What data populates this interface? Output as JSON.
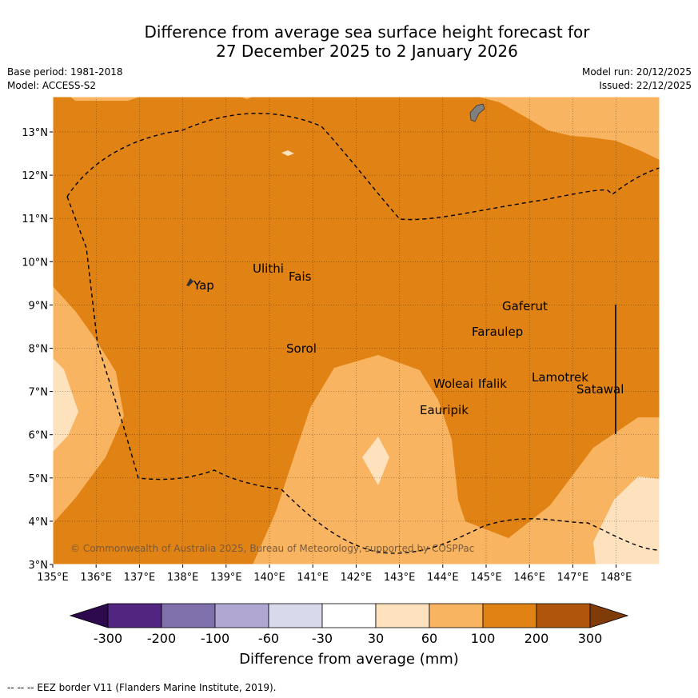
{
  "title_line1": "Difference from average sea surface height forecast for",
  "title_line2": "27 December 2025 to 2 January 2026",
  "meta": {
    "base_period": "Base period: 1981-2018",
    "model": "Model: ACCESS-S2",
    "model_run": "Model run: 20/12/2025",
    "issued": "Issued: 22/12/2025"
  },
  "copyright": "© Commonwealth of Australia 2025, Bureau of Meteorology, supported by COSPPac",
  "lat_labels": [
    "13°N",
    "12°N",
    "11°N",
    "10°N",
    "9°N",
    "8°N",
    "7°N",
    "6°N",
    "5°N",
    "4°N",
    "3°N"
  ],
  "lon_labels": [
    "135°E",
    "136°E",
    "137°E",
    "138°E",
    "139°E",
    "140°E",
    "141°E",
    "142°E",
    "143°E",
    "144°E",
    "145°E",
    "146°E",
    "147°E",
    "148°E"
  ],
  "places": {
    "yap": "Yap",
    "ulithi": "Ulithi",
    "fais": "Fais",
    "sorol": "Sorol",
    "gaferut": "Gaferut",
    "faraulep": "Faraulep",
    "woleai": "Woleai",
    "ifalik": "Ifalik",
    "lamotrek": "Lamotrek",
    "satawal": "Satawal",
    "eauripik": "Eauripik"
  },
  "colorbar": {
    "labels": [
      "-300",
      "-200",
      "-100",
      "-60",
      "-30",
      "30",
      "60",
      "100",
      "200",
      "300"
    ],
    "colors": [
      "#2d0a4e",
      "#512580",
      "#7f6fab",
      "#b0a8d2",
      "#d9d9ec",
      "#ffffff",
      "#fde2bd",
      "#f8b460",
      "#e08214",
      "#b0560c",
      "#7f3b08"
    ],
    "title": "Difference from average (mm)"
  },
  "footnote": "--  --  -- EEZ border V11 (Flanders Marine Institute, 2019)."
}
